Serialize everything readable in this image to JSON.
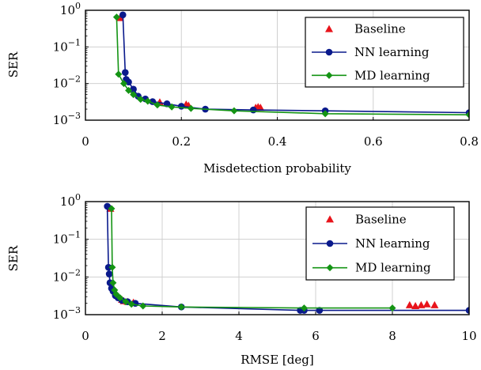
{
  "chart_data": [
    {
      "type": "scatter",
      "title": "",
      "xlabel": "Misdetection probability",
      "ylabel": "SER",
      "xlim": [
        0,
        0.8
      ],
      "ylim": [
        0.001,
        1
      ],
      "yscale": "log",
      "grid": true,
      "legend": "top-right",
      "x_ticks": [
        "0",
        "0.2",
        "0.4",
        "0.6",
        "0.8"
      ],
      "y_ticks": [
        "10^0",
        "10^-1",
        "10^-2",
        "10^-3"
      ],
      "series": [
        {
          "name": "Baseline",
          "kind": "markers",
          "marker": "triangle",
          "color": "#e8141b",
          "points": [
            [
              0.072,
              0.62
            ],
            [
              0.155,
              0.0031
            ],
            [
              0.21,
              0.0027
            ],
            [
              0.215,
              0.0025
            ],
            [
              0.355,
              0.0022
            ],
            [
              0.36,
              0.0023
            ],
            [
              0.365,
              0.0022
            ]
          ]
        },
        {
          "name": "NN learning",
          "kind": "line",
          "marker": "circle",
          "color": "#0a1a8c",
          "points": [
            [
              0.078,
              0.75
            ],
            [
              0.083,
              0.02
            ],
            [
              0.085,
              0.013
            ],
            [
              0.09,
              0.011
            ],
            [
              0.1,
              0.007
            ],
            [
              0.11,
              0.0045
            ],
            [
              0.125,
              0.0038
            ],
            [
              0.14,
              0.0032
            ],
            [
              0.17,
              0.0028
            ],
            [
              0.2,
              0.0024
            ],
            [
              0.25,
              0.002
            ],
            [
              0.35,
              0.0019
            ],
            [
              0.5,
              0.0018
            ],
            [
              0.8,
              0.0016
            ]
          ]
        },
        {
          "name": "MD learning",
          "kind": "line",
          "marker": "diamond",
          "color": "#149414",
          "points": [
            [
              0.065,
              0.65
            ],
            [
              0.069,
              0.018
            ],
            [
              0.08,
              0.01
            ],
            [
              0.09,
              0.0065
            ],
            [
              0.1,
              0.005
            ],
            [
              0.115,
              0.0037
            ],
            [
              0.13,
              0.0033
            ],
            [
              0.15,
              0.0026
            ],
            [
              0.18,
              0.0023
            ],
            [
              0.22,
              0.0021
            ],
            [
              0.31,
              0.0018
            ],
            [
              0.5,
              0.0015
            ],
            [
              0.8,
              0.0014
            ]
          ]
        }
      ]
    },
    {
      "type": "scatter",
      "title": "",
      "xlabel": "RMSE [deg]",
      "ylabel": "SER",
      "xlim": [
        0,
        10
      ],
      "ylim": [
        0.001,
        1
      ],
      "yscale": "log",
      "grid": true,
      "legend": "top-right",
      "x_ticks": [
        "0",
        "2",
        "4",
        "6",
        "8",
        "10"
      ],
      "y_ticks": [
        "10^0",
        "10^-1",
        "10^-2",
        "10^-3"
      ],
      "series": [
        {
          "name": "Baseline",
          "kind": "markers",
          "marker": "triangle",
          "color": "#e8141b",
          "points": [
            [
              0.65,
              0.65
            ],
            [
              0.95,
              0.0025
            ],
            [
              1.0,
              0.0023
            ],
            [
              1.1,
              0.0022
            ],
            [
              1.25,
              0.0021
            ],
            [
              8.45,
              0.0018
            ],
            [
              8.6,
              0.0017
            ],
            [
              8.75,
              0.0018
            ],
            [
              8.9,
              0.0019
            ],
            [
              9.1,
              0.0018
            ]
          ]
        },
        {
          "name": "NN learning",
          "kind": "line",
          "marker": "circle",
          "color": "#0a1a8c",
          "points": [
            [
              0.57,
              0.75
            ],
            [
              0.6,
              0.018
            ],
            [
              0.62,
              0.012
            ],
            [
              0.64,
              0.007
            ],
            [
              0.68,
              0.005
            ],
            [
              0.72,
              0.0042
            ],
            [
              0.78,
              0.0032
            ],
            [
              0.85,
              0.0028
            ],
            [
              0.95,
              0.0024
            ],
            [
              1.1,
              0.0022
            ],
            [
              1.3,
              0.002
            ],
            [
              2.5,
              0.0016
            ],
            [
              5.6,
              0.0013
            ],
            [
              5.7,
              0.0013
            ],
            [
              6.1,
              0.0013
            ],
            [
              10,
              0.0013
            ]
          ]
        },
        {
          "name": "MD learning",
          "kind": "line",
          "marker": "diamond",
          "color": "#149414",
          "points": [
            [
              0.68,
              0.65
            ],
            [
              0.7,
              0.018
            ],
            [
              0.72,
              0.007
            ],
            [
              0.76,
              0.0045
            ],
            [
              0.8,
              0.0035
            ],
            [
              0.9,
              0.0028
            ],
            [
              1.05,
              0.0022
            ],
            [
              1.2,
              0.0019
            ],
            [
              1.5,
              0.0017
            ],
            [
              2.5,
              0.0016
            ],
            [
              5.7,
              0.0015
            ],
            [
              8.0,
              0.0015
            ]
          ]
        }
      ]
    }
  ]
}
